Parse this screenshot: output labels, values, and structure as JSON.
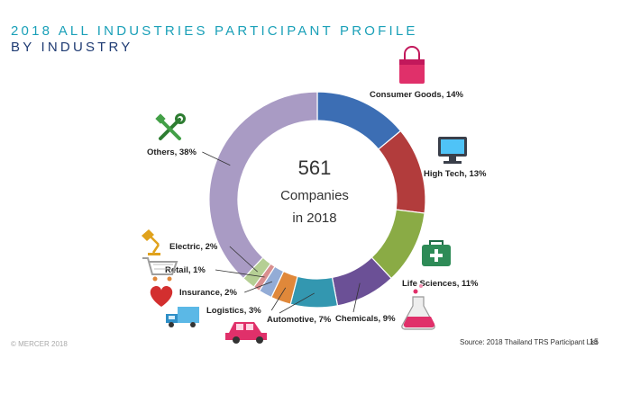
{
  "header": {
    "title_line1": "2018 ALL INDUSTRIES PARTICIPANT PROFILE",
    "title_line2": "BY INDUSTRY"
  },
  "footer": {
    "copyright": "© MERCER 2018",
    "source": "Source: 2018 Thailand TRS Participant List",
    "page_number": "15"
  },
  "chart_data": {
    "type": "pie",
    "style": "donut",
    "center_value": "561",
    "center_line1": "Companies",
    "center_line2": "in 2018",
    "slices": [
      {
        "label": "Consumer Goods, 14%",
        "value": 14,
        "color": "#3c6eb4",
        "icon": "shopping-bag-icon"
      },
      {
        "label": "High Tech, 13%",
        "value": 13,
        "color": "#b23c3c",
        "icon": "monitor-icon"
      },
      {
        "label": "Life Sciences, 11%",
        "value": 11,
        "color": "#8aab45",
        "icon": "medical-kit-icon"
      },
      {
        "label": "Chemicals, 9%",
        "value": 9,
        "color": "#6b5096",
        "icon": "flask-icon"
      },
      {
        "label": "Automotive, 7%",
        "value": 7,
        "color": "#3397b0",
        "icon": "car-icon"
      },
      {
        "label": "Logistics, 3%",
        "value": 3,
        "color": "#e0883a",
        "icon": "truck-icon"
      },
      {
        "label": "Insurance, 2%",
        "value": 2,
        "color": "#93acd6",
        "icon": "heart-icon"
      },
      {
        "label": "Retail, 1%",
        "value": 1,
        "color": "#d98f8f",
        "icon": "shopping-cart-icon"
      },
      {
        "label": "Electric, 2%",
        "value": 2,
        "color": "#b5cf94",
        "icon": "lamp-icon"
      },
      {
        "label": "Others, 38%",
        "value": 38,
        "color": "#a99bc4",
        "icon": "tools-icon"
      }
    ]
  }
}
